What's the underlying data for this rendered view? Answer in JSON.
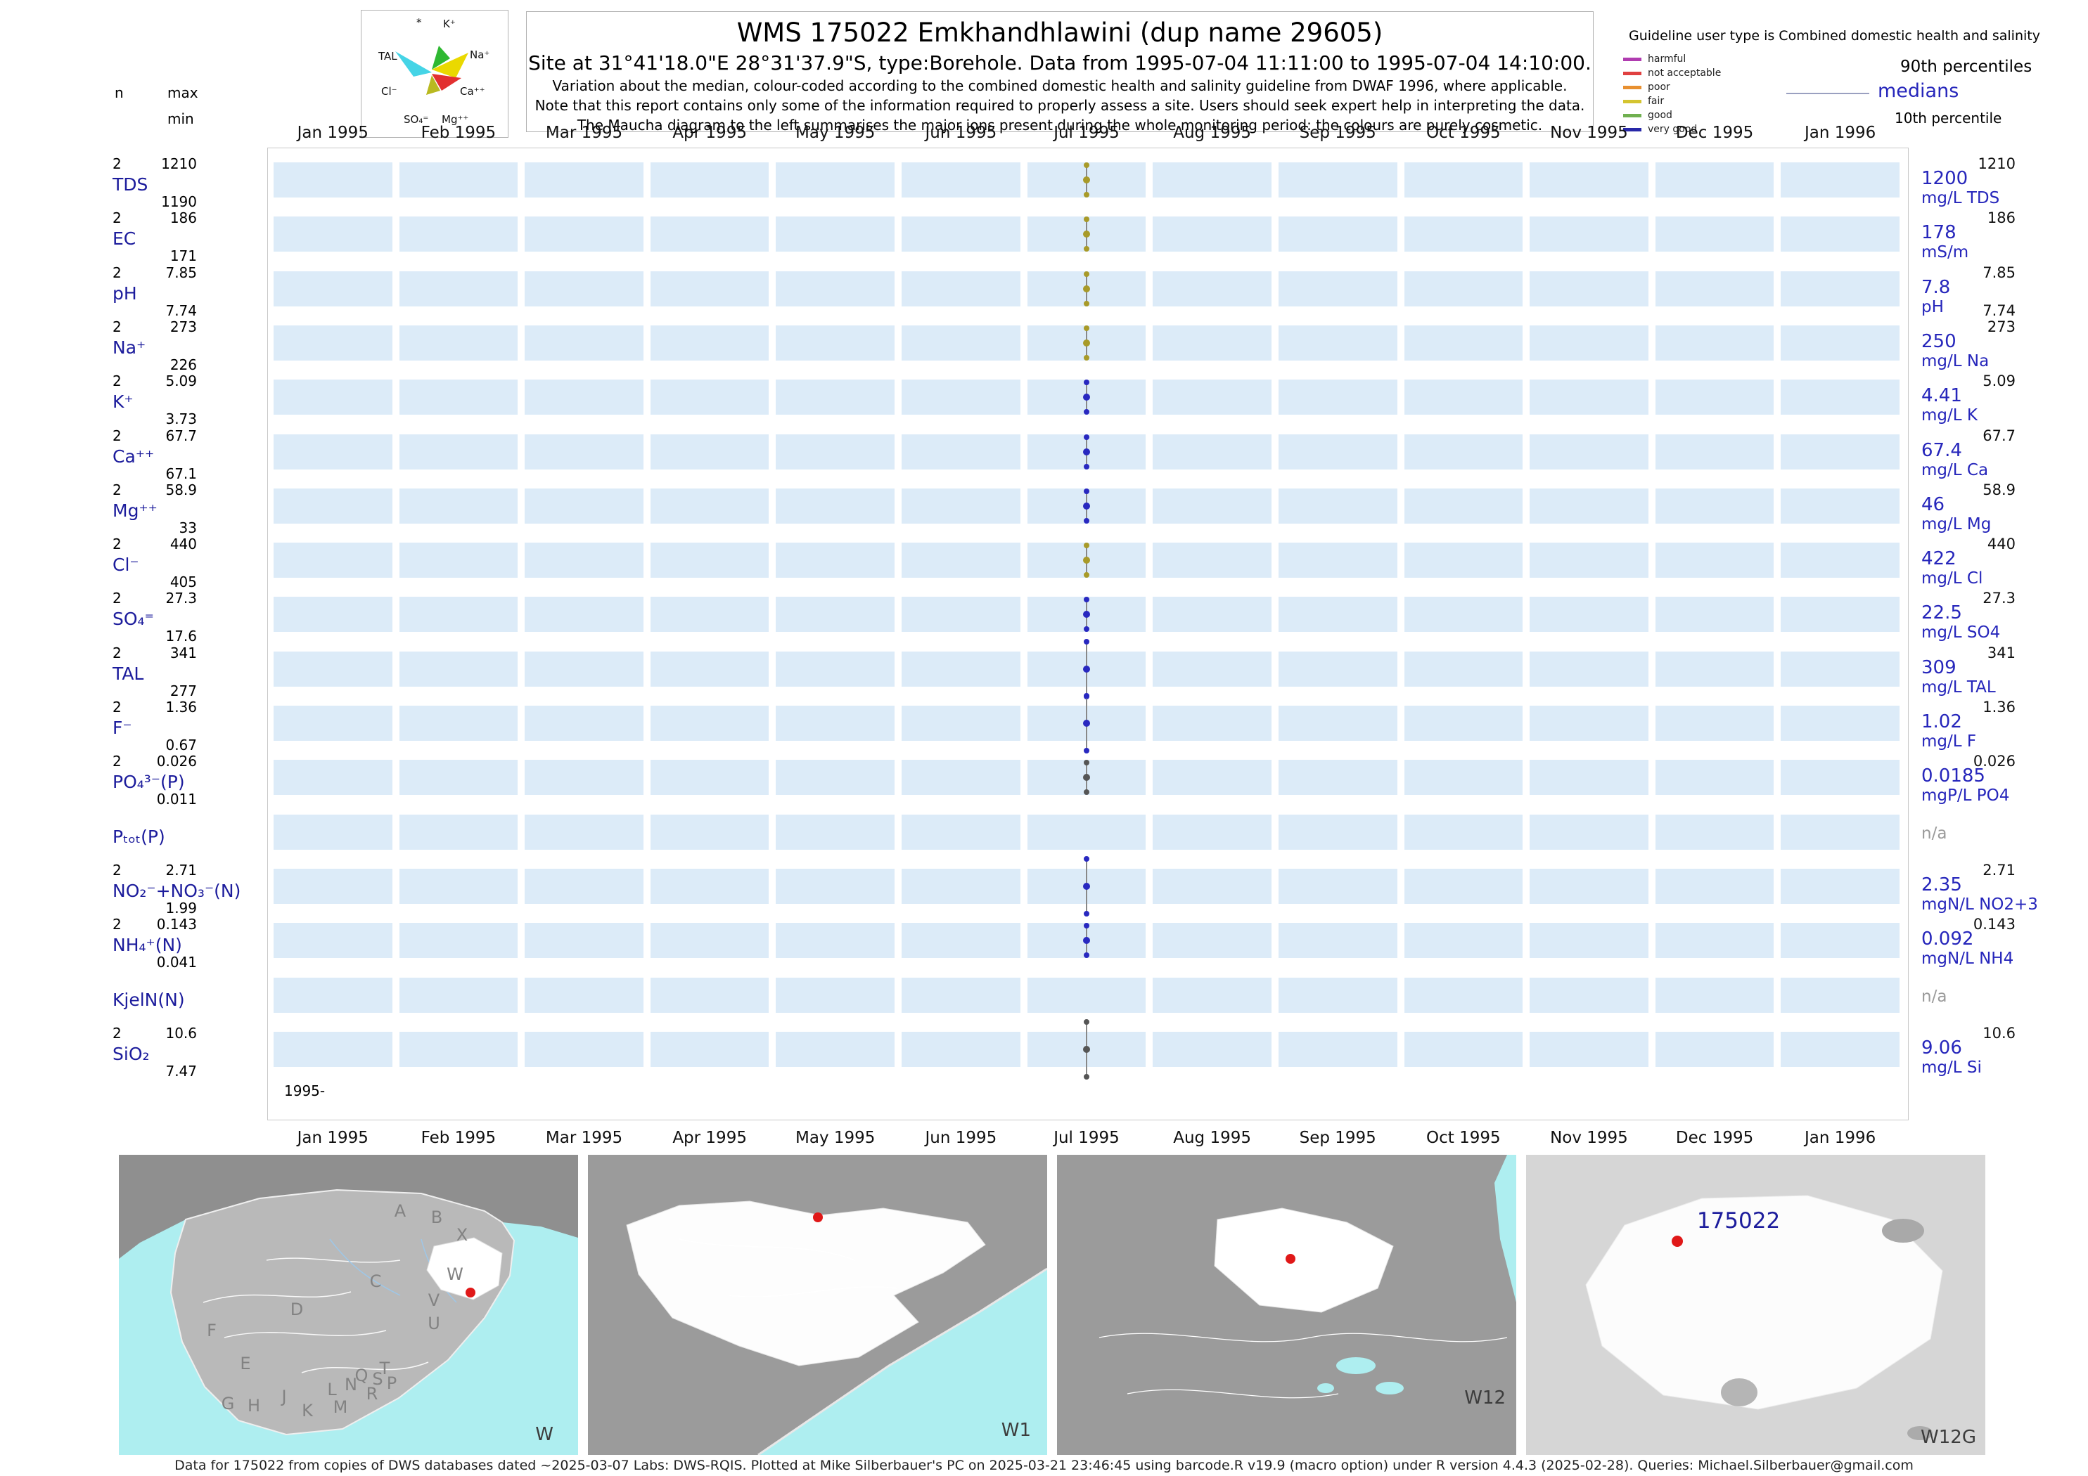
{
  "header": {
    "title": "WMS 175022  Emkhandhlawini (dup name 29605)",
    "site_line": "Site at 31°41'18.0\"E 28°31'37.9\"S, type:Borehole.  Data from 1995-07-04 11:11:00 to 1995-07-04 14:10:00.",
    "notes": [
      "Variation about the median,  colour-coded according to the combined domestic health and salinity guideline from DWAF 1996, where applicable.",
      "Note that this report contains only some of the information required to properly assess a site. Users should seek expert help in interpreting the data.",
      "The Maucha diagram to the left summarises the major ions present during the whole monitoring period: the colours are purely cosmetic."
    ]
  },
  "left_header": {
    "n": "n",
    "max": "max",
    "min": "min"
  },
  "maucha": {
    "labels": {
      "star": "*",
      "k": "K⁺",
      "na": "Na⁺",
      "tal": "TAL",
      "cl": "Cl⁻",
      "ca": "Ca⁺⁺",
      "so4": "SO₄⁼",
      "mg": "Mg⁺⁺"
    }
  },
  "legend": {
    "title": "Guideline user type is Combined domestic health and salinity",
    "classes": [
      {
        "label": "harmful",
        "color": "#b03cb0"
      },
      {
        "label": "not acceptable",
        "color": "#e04040"
      },
      {
        "label": "poor",
        "color": "#e89030"
      },
      {
        "label": "fair",
        "color": "#d4c430"
      },
      {
        "label": "good",
        "color": "#70b050"
      },
      {
        "label": "very good",
        "color": "#2828a8"
      }
    ],
    "p90": "90th percentiles",
    "medians": "medians",
    "p10": "10th percentile"
  },
  "axis": {
    "start_label": "1995-"
  },
  "chart_data": {
    "type": "line",
    "title": "WMS 175022 Emkhandhlawini (dup name 29605)",
    "sample_period": "1995-07-04 11:11:00 to 1995-07-04 14:10:00",
    "sample_month": "Jul 1995",
    "months": [
      "Jan 1995",
      "Feb 1995",
      "Mar 1995",
      "Apr 1995",
      "May 1995",
      "Jun 1995",
      "Jul 1995",
      "Aug 1995",
      "Sep 1995",
      "Oct 1995",
      "Nov 1995",
      "Dec 1995",
      "Jan 1996"
    ],
    "parameters": [
      {
        "name": "TDS",
        "n": "2",
        "max": "1210",
        "min": "1190",
        "median": "1200",
        "p90": "1210",
        "p10": "",
        "unit": "mg/L TDS",
        "na": false,
        "color": "#a89a28",
        "tall": false
      },
      {
        "name": "EC",
        "n": "2",
        "max": "186",
        "min": "171",
        "median": "178",
        "p90": "186",
        "p10": "",
        "unit": "mS/m",
        "na": false,
        "color": "#a89a28",
        "tall": false
      },
      {
        "name": "pH",
        "n": "2",
        "max": "7.85",
        "min": "7.74",
        "median": "7.8",
        "p90": "7.85",
        "p10": "7.74",
        "unit": "pH",
        "na": false,
        "color": "#a89a28",
        "tall": false
      },
      {
        "name": "Na⁺",
        "n": "2",
        "max": "273",
        "min": "226",
        "median": "250",
        "p90": "273",
        "p10": "",
        "unit": "mg/L Na",
        "na": false,
        "color": "#a89a28",
        "tall": false
      },
      {
        "name": "K⁺",
        "n": "2",
        "max": "5.09",
        "min": "3.73",
        "median": "4.41",
        "p90": "5.09",
        "p10": "",
        "unit": "mg/L K",
        "na": false,
        "color": "#2828c0",
        "tall": false
      },
      {
        "name": "Ca⁺⁺",
        "n": "2",
        "max": "67.7",
        "min": "67.1",
        "median": "67.4",
        "p90": "67.7",
        "p10": "",
        "unit": "mg/L Ca",
        "na": false,
        "color": "#2828c0",
        "tall": false
      },
      {
        "name": "Mg⁺⁺",
        "n": "2",
        "max": "58.9",
        "min": "33",
        "median": "46",
        "p90": "58.9",
        "p10": "",
        "unit": "mg/L Mg",
        "na": false,
        "color": "#2828c0",
        "tall": false
      },
      {
        "name": "Cl⁻",
        "n": "2",
        "max": "440",
        "min": "405",
        "median": "422",
        "p90": "440",
        "p10": "",
        "unit": "mg/L Cl",
        "na": false,
        "color": "#a89a28",
        "tall": false
      },
      {
        "name": "SO₄⁼",
        "n": "2",
        "max": "27.3",
        "min": "17.6",
        "median": "22.5",
        "p90": "27.3",
        "p10": "",
        "unit": "mg/L SO4",
        "na": false,
        "color": "#2828c0",
        "tall": false
      },
      {
        "name": "TAL",
        "n": "2",
        "max": "341",
        "min": "277",
        "median": "309",
        "p90": "341",
        "p10": "",
        "unit": "mg/L TAL",
        "na": false,
        "color": "#2828c0",
        "tall": true
      },
      {
        "name": "F⁻",
        "n": "2",
        "max": "1.36",
        "min": "0.67",
        "median": "1.02",
        "p90": "1.36",
        "p10": "",
        "unit": "mg/L F",
        "na": false,
        "color": "#2828c0",
        "tall": true
      },
      {
        "name": "PO₄³⁻(P)",
        "n": "2",
        "max": "0.026",
        "min": "0.011",
        "median": "0.0185",
        "p90": "0.026",
        "p10": "",
        "unit": "mgP/L PO4",
        "na": false,
        "color": "#555555",
        "tall": false
      },
      {
        "name": "Pₜₒₜ(P)",
        "n": "",
        "max": "",
        "min": "",
        "median": "n/a",
        "p90": "",
        "p10": "",
        "unit": "",
        "na": true,
        "color": "",
        "tall": false
      },
      {
        "name": "NO₂⁻+NO₃⁻(N)",
        "n": "2",
        "max": "2.71",
        "min": "1.99",
        "median": "2.35",
        "p90": "2.71",
        "p10": "",
        "unit": "mgN/L NO2+3",
        "na": false,
        "color": "#2828c0",
        "tall": true
      },
      {
        "name": "NH₄⁺(N)",
        "n": "2",
        "max": "0.143",
        "min": "0.041",
        "median": "0.092",
        "p90": "0.143",
        "p10": "",
        "unit": "mgN/L NH4",
        "na": false,
        "color": "#2828c0",
        "tall": false
      },
      {
        "name": "KjelN(N)",
        "n": "",
        "max": "",
        "min": "",
        "median": "n/a",
        "p90": "",
        "p10": "",
        "unit": "",
        "na": true,
        "color": "",
        "tall": false
      },
      {
        "name": "SiO₂",
        "n": "2",
        "max": "10.6",
        "min": "7.47",
        "median": "9.06",
        "p90": "10.6",
        "p10": "",
        "unit": "mg/L Si",
        "na": false,
        "color": "#555555",
        "tall": true
      }
    ]
  },
  "maps": [
    {
      "label": "W",
      "letters": [
        "A",
        "B",
        "X",
        "C",
        "W",
        "V",
        "U",
        "D",
        "F",
        "E",
        "G",
        "H",
        "J",
        "K",
        "L",
        "N",
        "M",
        "Q",
        "S",
        "R",
        "T",
        "P"
      ]
    },
    {
      "label": "W1"
    },
    {
      "label": "W12"
    },
    {
      "label": "W12G",
      "station_label": "175022"
    }
  ],
  "footer": "Data for 175022 from copies of DWS databases dated ~2025-03-07 Labs: DWS-RQIS. Plotted at Mike Silberbauer's PC on 2025-03-21 23:46:45 using barcode.R v19.9 (macro option) under R version 4.4.3 (2025-02-28). Queries: Michael.Silberbauer@gmail.com"
}
